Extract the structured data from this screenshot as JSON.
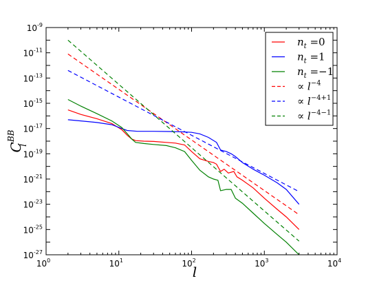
{
  "chart_data": {
    "type": "line",
    "xlabel": "l",
    "ylabel_main": "C",
    "ylabel_sub": "l",
    "ylabel_sup": "BB",
    "x_scale": "log",
    "y_scale": "log",
    "xlim": [
      1,
      10000
    ],
    "ylim": [
      1e-27,
      1e-09
    ],
    "grid": false,
    "legend_position": "top-right",
    "x_ticks": [
      {
        "base": "10",
        "exp": "0",
        "value": 1
      },
      {
        "base": "10",
        "exp": "1",
        "value": 10
      },
      {
        "base": "10",
        "exp": "2",
        "value": 100
      },
      {
        "base": "10",
        "exp": "3",
        "value": 1000
      },
      {
        "base": "10",
        "exp": "4",
        "value": 10000
      }
    ],
    "y_ticks": [
      {
        "base": "10",
        "exp": "-9",
        "value": 1e-09
      },
      {
        "base": "10",
        "exp": "-11",
        "value": 1e-11
      },
      {
        "base": "10",
        "exp": "-13",
        "value": 1e-13
      },
      {
        "base": "10",
        "exp": "-15",
        "value": 1e-15
      },
      {
        "base": "10",
        "exp": "-17",
        "value": 1e-17
      },
      {
        "base": "10",
        "exp": "-19",
        "value": 1e-19
      },
      {
        "base": "10",
        "exp": "-21",
        "value": 1e-21
      },
      {
        "base": "10",
        "exp": "-23",
        "value": 1e-23
      },
      {
        "base": "10",
        "exp": "-25",
        "value": 1e-25
      },
      {
        "base": "10",
        "exp": "-27",
        "value": 1e-27
      }
    ],
    "series": [
      {
        "name": "n_t =0",
        "legend": {
          "main": "n",
          "sub": "t",
          "rest": " =0"
        },
        "color": "#ff0000",
        "style": "solid",
        "points": [
          [
            2,
            3e-16
          ],
          [
            3,
            1.3e-16
          ],
          [
            5,
            6e-17
          ],
          [
            8,
            2.5e-17
          ],
          [
            11,
            8e-18
          ],
          [
            13,
            3e-18
          ],
          [
            15,
            1.5e-18
          ],
          [
            17,
            1.1e-18
          ],
          [
            22,
            1e-18
          ],
          [
            30,
            9.5e-19
          ],
          [
            45,
            8e-19
          ],
          [
            60,
            7e-19
          ],
          [
            80,
            5e-19
          ],
          [
            100,
            1.5e-19
          ],
          [
            130,
            4e-20
          ],
          [
            170,
            2.5e-20
          ],
          [
            200,
            2e-20
          ],
          [
            220,
            1.5e-20
          ],
          [
            250,
            4e-21
          ],
          [
            280,
            6e-21
          ],
          [
            320,
            3e-21
          ],
          [
            380,
            4e-21
          ],
          [
            420,
            1.5e-21
          ],
          [
            500,
            8e-22
          ],
          [
            700,
            2e-22
          ],
          [
            1000,
            3e-23
          ],
          [
            1500,
            4e-24
          ],
          [
            2000,
            1e-24
          ],
          [
            3000,
            1e-25
          ]
        ]
      },
      {
        "name": "n_t =1",
        "legend": {
          "main": "n",
          "sub": "t",
          "rest": " =1"
        },
        "color": "#0000ff",
        "style": "solid",
        "points": [
          [
            2,
            5e-17
          ],
          [
            3,
            4e-17
          ],
          [
            5,
            3e-17
          ],
          [
            8,
            2e-17
          ],
          [
            11,
            1e-17
          ],
          [
            13,
            7e-18
          ],
          [
            18,
            6e-18
          ],
          [
            30,
            6e-18
          ],
          [
            50,
            5.8e-18
          ],
          [
            70,
            5.5e-18
          ],
          [
            100,
            5e-18
          ],
          [
            130,
            3.8e-18
          ],
          [
            170,
            2e-18
          ],
          [
            220,
            8e-19
          ],
          [
            250,
            2e-19
          ],
          [
            300,
            1.5e-19
          ],
          [
            350,
            1e-19
          ],
          [
            400,
            6e-20
          ],
          [
            500,
            2e-20
          ],
          [
            700,
            6e-21
          ],
          [
            1000,
            2e-21
          ],
          [
            1500,
            5e-22
          ],
          [
            2000,
            1.5e-22
          ],
          [
            3000,
            1e-23
          ]
        ]
      },
      {
        "name": "n_t =−1",
        "legend": {
          "main": "n",
          "sub": "t",
          "rest": " =−1"
        },
        "color": "#008000",
        "style": "solid",
        "points": [
          [
            2,
            2e-15
          ],
          [
            3,
            6e-16
          ],
          [
            5,
            1.5e-16
          ],
          [
            8,
            4e-17
          ],
          [
            11,
            1.2e-17
          ],
          [
            13,
            4e-18
          ],
          [
            15,
            1.5e-18
          ],
          [
            17,
            8e-19
          ],
          [
            22,
            6.5e-19
          ],
          [
            30,
            5.5e-19
          ],
          [
            45,
            4.5e-19
          ],
          [
            60,
            3e-19
          ],
          [
            80,
            1.5e-19
          ],
          [
            100,
            3e-20
          ],
          [
            130,
            5e-21
          ],
          [
            170,
            1.5e-21
          ],
          [
            200,
            1e-21
          ],
          [
            230,
            8e-22
          ],
          [
            250,
            1.2e-22
          ],
          [
            300,
            1.5e-22
          ],
          [
            350,
            1.5e-22
          ],
          [
            400,
            3e-23
          ],
          [
            500,
            1.2e-23
          ],
          [
            700,
            2e-24
          ],
          [
            1000,
            3e-25
          ],
          [
            1500,
            4e-26
          ],
          [
            2000,
            1e-26
          ],
          [
            3000,
            1e-27
          ]
        ]
      },
      {
        "name": "∝ l^−4",
        "legend": {
          "prefix": "∝ ",
          "main": "l",
          "sup": "−4"
        },
        "color": "#ff0000",
        "style": "dashed",
        "points": [
          [
            2,
            8e-12
          ],
          [
            3000,
            1.5e-24
          ]
        ]
      },
      {
        "name": "∝ l^−4+1",
        "legend": {
          "prefix": "∝ ",
          "main": "l",
          "sup": "−4+1"
        },
        "color": "#0000ff",
        "style": "dashed",
        "points": [
          [
            2,
            4e-13
          ],
          [
            3000,
            1e-22
          ]
        ]
      },
      {
        "name": "∝ l^−4−1",
        "legend": {
          "prefix": "∝ ",
          "main": "l",
          "sup": "−4−1"
        },
        "color": "#008000",
        "style": "dashed",
        "points": [
          [
            2,
            1e-10
          ],
          [
            3000,
            1.2e-26
          ]
        ]
      }
    ]
  }
}
